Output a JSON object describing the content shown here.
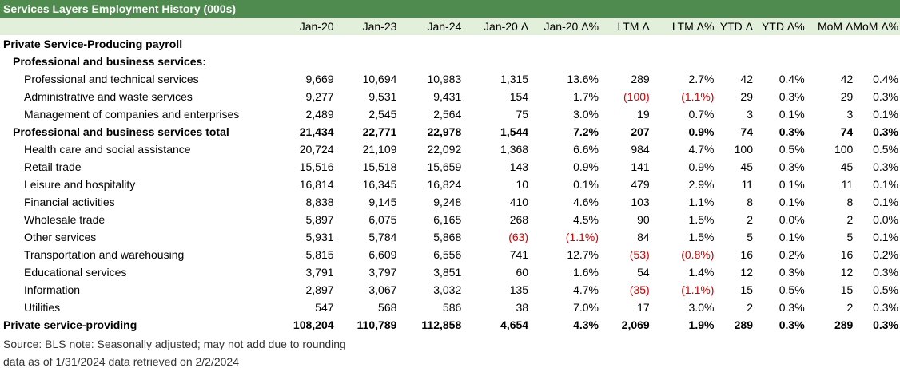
{
  "title": "Services Layers Employment History (000s)",
  "columns": [
    "Jan-20",
    "Jan-23",
    "Jan-24",
    "Jan-20 Δ",
    "Jan-20 Δ%",
    "LTM Δ",
    "LTM Δ%",
    "YTD Δ",
    "YTD Δ%",
    "MoM Δ",
    "MoM Δ%"
  ],
  "rows": [
    {
      "label": "Private Service-Producing payroll",
      "level": 0,
      "bold": true,
      "values": []
    },
    {
      "label": "Professional and business services:",
      "level": 1,
      "bold": true,
      "values": []
    },
    {
      "label": "Professional and technical services",
      "level": 2,
      "bold": false,
      "values": [
        "9,669",
        "10,694",
        "10,983",
        "1,315",
        "13.6%",
        "289",
        "2.7%",
        "42",
        "0.4%",
        "42",
        "0.4%"
      ]
    },
    {
      "label": "Administrative and waste services",
      "level": 2,
      "bold": false,
      "values": [
        "9,277",
        "9,531",
        "9,431",
        "154",
        "1.7%",
        "(100)",
        "(1.1%)",
        "29",
        "0.3%",
        "29",
        "0.3%"
      ]
    },
    {
      "label": "Management of companies and enterprises",
      "level": 2,
      "bold": false,
      "values": [
        "2,489",
        "2,545",
        "2,564",
        "75",
        "3.0%",
        "19",
        "0.7%",
        "3",
        "0.1%",
        "3",
        "0.1%"
      ]
    },
    {
      "label": "Professional and business services total",
      "level": 1,
      "bold": true,
      "values": [
        "21,434",
        "22,771",
        "22,978",
        "1,544",
        "7.2%",
        "207",
        "0.9%",
        "74",
        "0.3%",
        "74",
        "0.3%"
      ]
    },
    {
      "label": "Health care and social assistance",
      "level": 2,
      "bold": false,
      "values": [
        "20,724",
        "21,109",
        "22,092",
        "1,368",
        "6.6%",
        "984",
        "4.7%",
        "100",
        "0.5%",
        "100",
        "0.5%"
      ]
    },
    {
      "label": "Retail trade",
      "level": 2,
      "bold": false,
      "values": [
        "15,516",
        "15,518",
        "15,659",
        "143",
        "0.9%",
        "141",
        "0.9%",
        "45",
        "0.3%",
        "45",
        "0.3%"
      ]
    },
    {
      "label": "Leisure and hospitality",
      "level": 2,
      "bold": false,
      "values": [
        "16,814",
        "16,345",
        "16,824",
        "10",
        "0.1%",
        "479",
        "2.9%",
        "11",
        "0.1%",
        "11",
        "0.1%"
      ]
    },
    {
      "label": "Financial activities",
      "level": 2,
      "bold": false,
      "values": [
        "8,838",
        "9,145",
        "9,248",
        "410",
        "4.6%",
        "103",
        "1.1%",
        "8",
        "0.1%",
        "8",
        "0.1%"
      ]
    },
    {
      "label": "Wholesale trade",
      "level": 2,
      "bold": false,
      "values": [
        "5,897",
        "6,075",
        "6,165",
        "268",
        "4.5%",
        "90",
        "1.5%",
        "2",
        "0.0%",
        "2",
        "0.0%"
      ]
    },
    {
      "label": "Other services",
      "level": 2,
      "bold": false,
      "values": [
        "5,931",
        "5,784",
        "5,868",
        "(63)",
        "(1.1%)",
        "84",
        "1.5%",
        "5",
        "0.1%",
        "5",
        "0.1%"
      ]
    },
    {
      "label": "Transportation and warehousing",
      "level": 2,
      "bold": false,
      "values": [
        "5,815",
        "6,609",
        "6,556",
        "741",
        "12.7%",
        "(53)",
        "(0.8%)",
        "16",
        "0.2%",
        "16",
        "0.2%"
      ]
    },
    {
      "label": "Educational services",
      "level": 2,
      "bold": false,
      "values": [
        "3,791",
        "3,797",
        "3,851",
        "60",
        "1.6%",
        "54",
        "1.4%",
        "12",
        "0.3%",
        "12",
        "0.3%"
      ]
    },
    {
      "label": "Information",
      "level": 2,
      "bold": false,
      "values": [
        "2,897",
        "3,067",
        "3,032",
        "135",
        "4.7%",
        "(35)",
        "(1.1%)",
        "15",
        "0.5%",
        "15",
        "0.5%"
      ]
    },
    {
      "label": "Utilities",
      "level": 2,
      "bold": false,
      "values": [
        "547",
        "568",
        "586",
        "38",
        "7.0%",
        "17",
        "3.0%",
        "2",
        "0.3%",
        "2",
        "0.3%"
      ]
    },
    {
      "label": "Private service-providing",
      "level": 0,
      "bold": true,
      "values": [
        "108,204",
        "110,789",
        "112,858",
        "4,654",
        "4.3%",
        "2,069",
        "1.9%",
        "289",
        "0.3%",
        "289",
        "0.3%"
      ]
    }
  ],
  "footer": {
    "line1": "Source: BLS     note: Seasonally adjusted; may not add due to rounding",
    "line2": "data as of 1/31/2024     data retrieved on 2/2/2024"
  },
  "colors": {
    "title_bg": "#4f8a4f",
    "header_bg": "#e2efda",
    "negative": "#d00000"
  }
}
